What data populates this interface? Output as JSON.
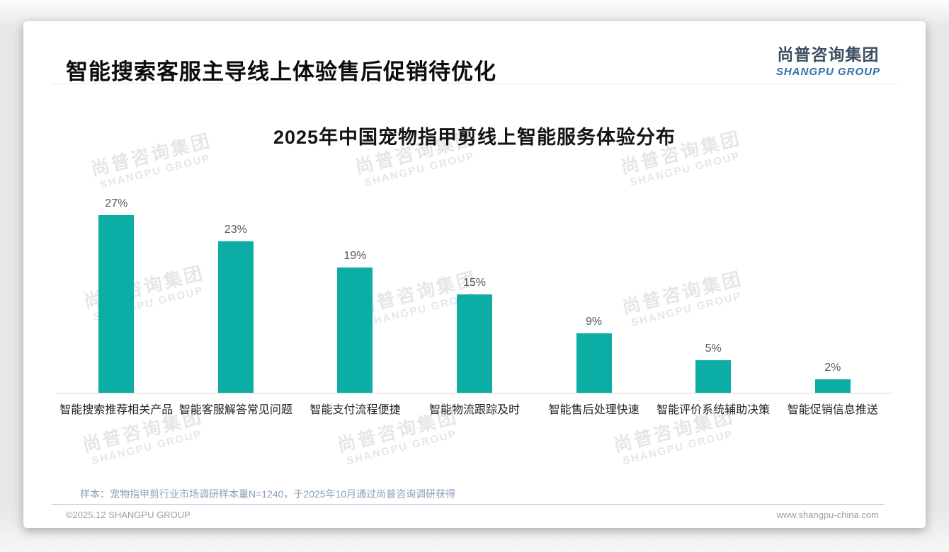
{
  "page": {
    "title": "智能搜索客服主导线上体验售后促销待优化",
    "logo": {
      "cn": "尚普咨询集团",
      "en": "SHANGPU GROUP"
    },
    "watermark": {
      "cn": "尚普咨询集团",
      "en": "SHANGPU GROUP"
    },
    "note": "样本：宠物指甲剪行业市场调研样本量N=1240，于2025年10月通过尚普咨询调研获得",
    "footer": {
      "left": "©2025.12 SHANGPU GROUP",
      "right": "www.shangpu-china.com"
    }
  },
  "chart_data": {
    "type": "bar",
    "title": "2025年中国宠物指甲剪线上智能服务体验分布",
    "categories": [
      "智能搜索推荐相关产品",
      "智能客服解答常见问题",
      "智能支付流程便捷",
      "智能物流跟踪及时",
      "智能售后处理快速",
      "智能评价系统辅助决策",
      "智能促销信息推送"
    ],
    "values": [
      27,
      23,
      19,
      15,
      9,
      5,
      2
    ],
    "unit": "%",
    "bar_color": "#0bada5",
    "xlabel": "",
    "ylabel": "",
    "ylim": [
      0,
      30
    ],
    "grid": false,
    "legend": "none",
    "value_labels": "above bars"
  }
}
